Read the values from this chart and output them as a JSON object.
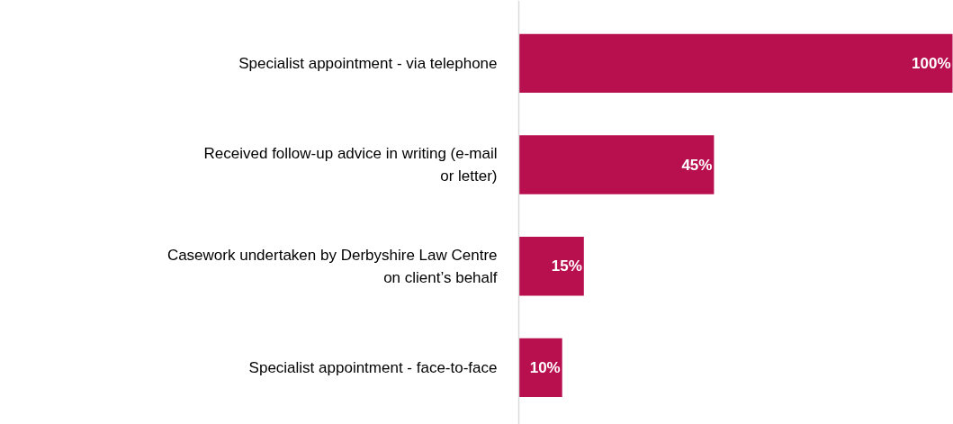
{
  "chart_data": {
    "type": "bar",
    "orientation": "horizontal",
    "grid": false,
    "categories": [
      "Specialist appointment - via telephone",
      "Received follow-up advice in writing (e-mail or letter)",
      "Casework undertaken by Derbyshire Law Centre on client’s behalf",
      "Specialist appointment - face-to-face"
    ],
    "values": [
      100,
      45,
      15,
      10
    ],
    "value_labels": [
      "100%",
      "45%",
      "15%",
      "10%"
    ],
    "color": "#b80f4f"
  }
}
